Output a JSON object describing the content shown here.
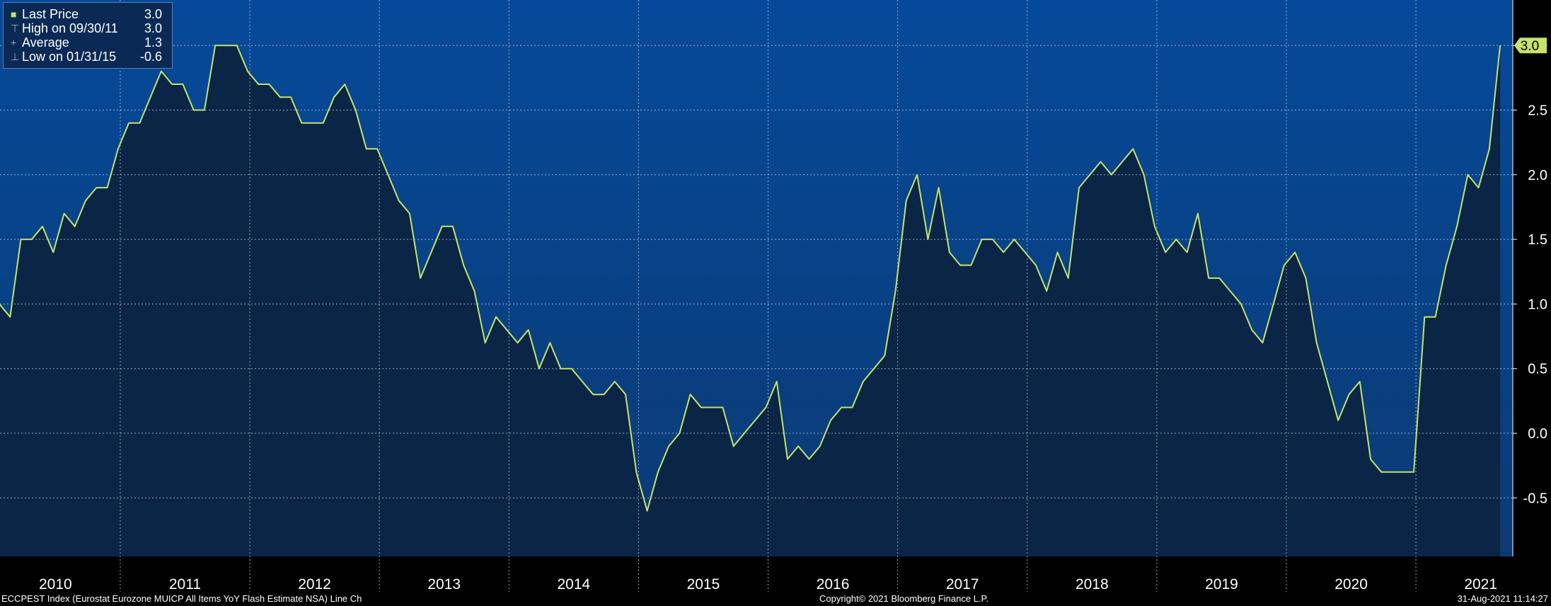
{
  "legend": {
    "last_label": "Last Price",
    "last_value": "3.0",
    "high_label": "High on 09/30/11",
    "high_value": "3.0",
    "avg_label": "Average",
    "avg_value": "1.3",
    "low_label": "Low on 01/31/15",
    "low_value": "-0.6"
  },
  "footer": {
    "left": "ECCPEST Index (Eurostat Eurozone MUICP All Items YoY Flash Estimate NSA) Line Ch",
    "center": "Copyright© 2021 Bloomberg Finance L.P.",
    "right": "31-Aug-2021 11:14:27"
  },
  "colors": {
    "line": "#c6e36a",
    "area": "#0b2546",
    "bg_top": "#054a9a",
    "bg_bottom": "#0b3a73"
  },
  "chart_data": {
    "type": "line",
    "x_start": "2010-01",
    "x_freq": "monthly",
    "ylim": [
      -0.95,
      3.3
    ],
    "yticks": [
      "3.0",
      "2.5",
      "2.0",
      "1.5",
      "1.0",
      "0.5",
      "0.0",
      "-0.5"
    ],
    "last_label": "3.0",
    "xlabels": [
      "2010",
      "2011",
      "2012",
      "2013",
      "2014",
      "2015",
      "2016",
      "2017",
      "2018",
      "2019",
      "2020",
      "2021"
    ],
    "values": [
      1.0,
      0.9,
      1.5,
      1.5,
      1.6,
      1.4,
      1.7,
      1.6,
      1.8,
      1.9,
      1.9,
      2.2,
      2.4,
      2.4,
      2.6,
      2.8,
      2.7,
      2.7,
      2.5,
      2.5,
      3.0,
      3.0,
      3.0,
      2.8,
      2.7,
      2.7,
      2.6,
      2.6,
      2.4,
      2.4,
      2.4,
      2.6,
      2.7,
      2.5,
      2.2,
      2.2,
      2.0,
      1.8,
      1.7,
      1.2,
      1.4,
      1.6,
      1.6,
      1.3,
      1.1,
      0.7,
      0.9,
      0.8,
      0.7,
      0.8,
      0.5,
      0.7,
      0.5,
      0.5,
      0.4,
      0.3,
      0.3,
      0.4,
      0.3,
      -0.3,
      -0.6,
      -0.3,
      -0.1,
      0.0,
      0.3,
      0.2,
      0.2,
      0.2,
      -0.1,
      0.0,
      0.1,
      0.2,
      0.4,
      -0.2,
      -0.1,
      -0.2,
      -0.1,
      0.1,
      0.2,
      0.2,
      0.4,
      0.5,
      0.6,
      1.1,
      1.8,
      2.0,
      1.5,
      1.9,
      1.4,
      1.3,
      1.3,
      1.5,
      1.5,
      1.4,
      1.5,
      1.4,
      1.3,
      1.1,
      1.4,
      1.2,
      1.9,
      2.0,
      2.1,
      2.0,
      2.1,
      2.2,
      2.0,
      1.6,
      1.4,
      1.5,
      1.4,
      1.7,
      1.2,
      1.2,
      1.1,
      1.0,
      0.8,
      0.7,
      1.0,
      1.3,
      1.4,
      1.2,
      0.7,
      0.4,
      0.1,
      0.3,
      0.4,
      -0.2,
      -0.3,
      -0.3,
      -0.3,
      -0.3,
      0.9,
      0.9,
      1.3,
      1.6,
      2.0,
      1.9,
      2.2,
      3.0
    ]
  }
}
